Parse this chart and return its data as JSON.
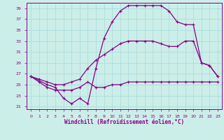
{
  "xlabel": "Windchill (Refroidissement éolien,°C)",
  "bg_color": "#cceee8",
  "line_color": "#880088",
  "grid_color": "#aadddd",
  "xlim": [
    -0.5,
    23.5
  ],
  "ylim": [
    20.5,
    40.0
  ],
  "xticks": [
    0,
    1,
    2,
    3,
    4,
    5,
    6,
    7,
    8,
    9,
    10,
    11,
    12,
    13,
    14,
    15,
    16,
    17,
    18,
    19,
    20,
    21,
    22,
    23
  ],
  "yticks": [
    21,
    23,
    25,
    27,
    29,
    31,
    33,
    35,
    37,
    39
  ],
  "line1_x": [
    0,
    1,
    2,
    3,
    4,
    5,
    6,
    7,
    8,
    9,
    10,
    11,
    12,
    13,
    14,
    15,
    16,
    17,
    18,
    19,
    20,
    21,
    22,
    23
  ],
  "line1_y": [
    26.5,
    25.5,
    24.5,
    24.0,
    24.0,
    24.0,
    24.5,
    25.5,
    24.5,
    24.5,
    25.0,
    25.0,
    25.5,
    25.5,
    25.5,
    25.5,
    25.5,
    25.5,
    25.5,
    25.5,
    25.5,
    25.5,
    25.5,
    25.5
  ],
  "line2_x": [
    0,
    1,
    2,
    3,
    4,
    5,
    6,
    7,
    8,
    9,
    10,
    11,
    12,
    13,
    14,
    15,
    16,
    17,
    18,
    19,
    20,
    21,
    22,
    23
  ],
  "line2_y": [
    26.5,
    26.0,
    25.5,
    25.0,
    25.0,
    25.5,
    26.0,
    28.0,
    29.5,
    30.5,
    31.5,
    32.5,
    33.0,
    33.0,
    33.0,
    33.0,
    32.5,
    32.0,
    32.0,
    33.0,
    33.0,
    29.0,
    28.5,
    26.5
  ],
  "line3_x": [
    0,
    2,
    3,
    4,
    5,
    6,
    7,
    8,
    9,
    10,
    11,
    12,
    13,
    14,
    15,
    16,
    17,
    18,
    19,
    20,
    21,
    22,
    23
  ],
  "line3_y": [
    26.5,
    25.0,
    24.5,
    22.5,
    21.5,
    22.5,
    21.5,
    28.0,
    33.5,
    36.5,
    38.5,
    39.5,
    39.5,
    39.5,
    39.5,
    39.5,
    38.5,
    36.5,
    36.0,
    36.0,
    29.0,
    28.5,
    26.5
  ]
}
